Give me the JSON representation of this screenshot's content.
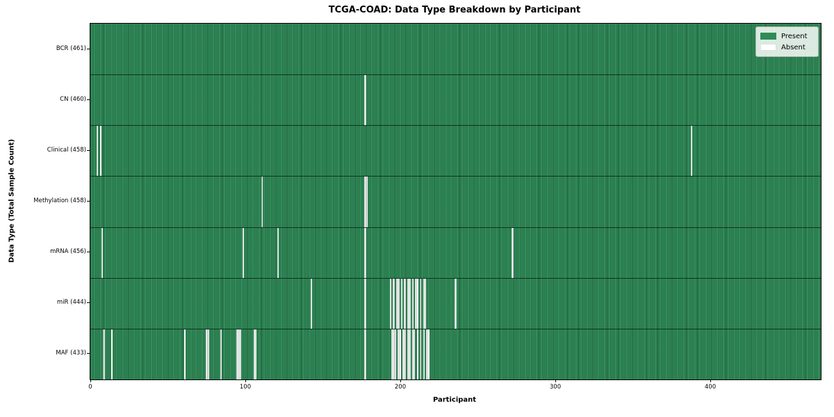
{
  "title": "TCGA-COAD: Data Type Breakdown by Participant",
  "xlabel": "Participant",
  "ylabel": "Data Type (Total Sample Count)",
  "legend": {
    "present_label": "Present",
    "absent_label": "Absent"
  },
  "colors": {
    "present": "#2e8b57",
    "absent": "#ffffff",
    "gridline": "rgba(8,32,20,0.5)",
    "border": "#000000",
    "legend_bg": "#f2f5f2"
  },
  "chart_data": {
    "type": "heatmap",
    "title": "TCGA-COAD: Data Type Breakdown by Participant",
    "xlabel": "Participant",
    "ylabel": "Data Type (Total Sample Count)",
    "legend_entries": [
      "Present",
      "Absent"
    ],
    "legend_position": "upper right",
    "grid": false,
    "n_participants": 461,
    "x_ticks": [
      {
        "value": 0,
        "px": 130
      },
      {
        "value": 100,
        "px": 353
      },
      {
        "value": 200,
        "px": 576
      },
      {
        "value": 300,
        "px": 799
      },
      {
        "value": 400,
        "px": 1022
      }
    ],
    "rows": [
      {
        "name": "BCR",
        "label": "BCR (461)",
        "present_count": 461,
        "absent_participants": []
      },
      {
        "name": "CN",
        "label": "CN (460)",
        "present_count": 460,
        "absent_participants": [
          173
        ]
      },
      {
        "name": "Clinical",
        "label": "Clinical (458)",
        "present_count": 458,
        "absent_participants": [
          4,
          6,
          379
        ]
      },
      {
        "name": "Methylation",
        "label": "Methylation (458)",
        "present_count": 458,
        "absent_participants": [
          108,
          173,
          174
        ]
      },
      {
        "name": "mRNA",
        "label": "mRNA (456)",
        "present_count": 456,
        "absent_participants": [
          7,
          96,
          118,
          173,
          266
        ]
      },
      {
        "name": "miR",
        "label": "miR (444)",
        "present_count": 444,
        "absent_participants": [
          139,
          173,
          189,
          191,
          193,
          194,
          196,
          198,
          200,
          201,
          203,
          205,
          206,
          208,
          210,
          211,
          230
        ]
      },
      {
        "name": "MAF",
        "label": "MAF (433)",
        "present_count": 433,
        "absent_participants": [
          8,
          13,
          59,
          73,
          74,
          82,
          92,
          93,
          94,
          103,
          104,
          173,
          190,
          191,
          192,
          194,
          195,
          197,
          198,
          200,
          201,
          203,
          204,
          206,
          208,
          210,
          212,
          213
        ]
      }
    ]
  }
}
